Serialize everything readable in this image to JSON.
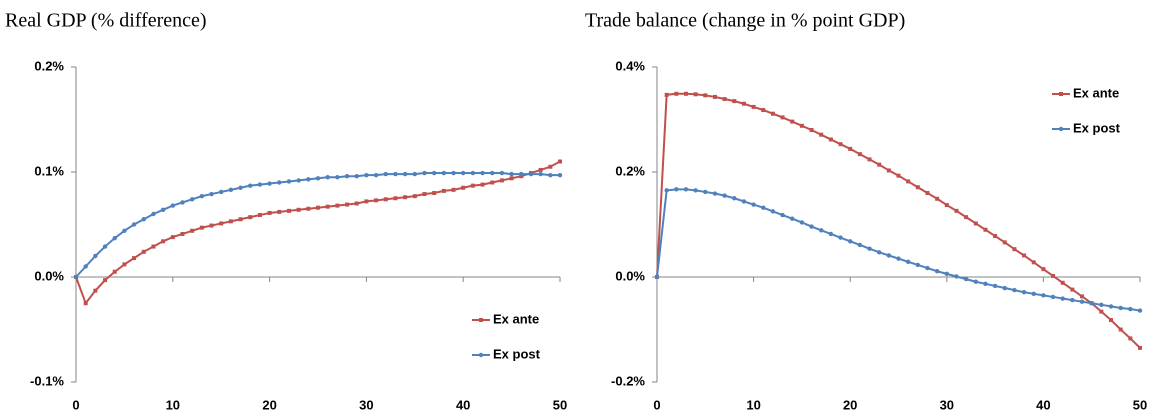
{
  "chart_data": [
    {
      "type": "line",
      "title": "Real GDP (% difference)",
      "x": [
        0,
        1,
        2,
        3,
        4,
        5,
        6,
        7,
        8,
        9,
        10,
        11,
        12,
        13,
        14,
        15,
        16,
        17,
        18,
        19,
        20,
        21,
        22,
        23,
        24,
        25,
        26,
        27,
        28,
        29,
        30,
        31,
        32,
        33,
        34,
        35,
        36,
        37,
        38,
        39,
        40,
        41,
        42,
        43,
        44,
        45,
        46,
        47,
        48,
        49,
        50
      ],
      "xlim": [
        0,
        50
      ],
      "xticks": [
        0,
        10,
        20,
        30,
        40,
        50
      ],
      "ylim": [
        -0.1,
        0.2
      ],
      "yticks": [
        {
          "value": -0.1,
          "label": "-0.1%"
        },
        {
          "value": 0,
          "label": "0.0%"
        },
        {
          "value": 0.1,
          "label": "0.1%"
        },
        {
          "value": 0.2,
          "label": "0.2%"
        }
      ],
      "legend": "bottom-right",
      "series": [
        {
          "name": "Ex ante",
          "color": "#c0504d",
          "values": [
            0,
            -0.025,
            -0.013,
            -0.003,
            0.005,
            0.012,
            0.018,
            0.024,
            0.029,
            0.034,
            0.038,
            0.041,
            0.044,
            0.047,
            0.049,
            0.051,
            0.053,
            0.055,
            0.057,
            0.059,
            0.061,
            0.062,
            0.063,
            0.064,
            0.065,
            0.066,
            0.067,
            0.068,
            0.069,
            0.07,
            0.072,
            0.073,
            0.074,
            0.075,
            0.076,
            0.077,
            0.079,
            0.08,
            0.082,
            0.083,
            0.085,
            0.087,
            0.088,
            0.09,
            0.092,
            0.094,
            0.096,
            0.099,
            0.102,
            0.105,
            0.11
          ]
        },
        {
          "name": "Ex post",
          "color": "#4f81bd",
          "values": [
            0,
            0.01,
            0.02,
            0.029,
            0.037,
            0.044,
            0.05,
            0.055,
            0.06,
            0.064,
            0.068,
            0.071,
            0.074,
            0.077,
            0.079,
            0.081,
            0.083,
            0.085,
            0.087,
            0.088,
            0.089,
            0.09,
            0.091,
            0.092,
            0.093,
            0.094,
            0.095,
            0.095,
            0.096,
            0.096,
            0.097,
            0.097,
            0.098,
            0.098,
            0.098,
            0.098,
            0.099,
            0.099,
            0.099,
            0.099,
            0.099,
            0.099,
            0.099,
            0.099,
            0.099,
            0.098,
            0.098,
            0.098,
            0.098,
            0.097,
            0.097
          ]
        }
      ]
    },
    {
      "type": "line",
      "title": "Trade balance (change in % point GDP)",
      "x": [
        0,
        1,
        2,
        3,
        4,
        5,
        6,
        7,
        8,
        9,
        10,
        11,
        12,
        13,
        14,
        15,
        16,
        17,
        18,
        19,
        20,
        21,
        22,
        23,
        24,
        25,
        26,
        27,
        28,
        29,
        30,
        31,
        32,
        33,
        34,
        35,
        36,
        37,
        38,
        39,
        40,
        41,
        42,
        43,
        44,
        45,
        46,
        47,
        48,
        49,
        50
      ],
      "xlim": [
        0,
        50
      ],
      "xticks": [
        0,
        10,
        20,
        30,
        40,
        50
      ],
      "ylim": [
        -0.2,
        0.4
      ],
      "yticks": [
        {
          "value": -0.2,
          "label": "-0.2%"
        },
        {
          "value": 0,
          "label": "0.0%"
        },
        {
          "value": 0.2,
          "label": "0.2%"
        },
        {
          "value": 0.4,
          "label": "0.4%"
        }
      ],
      "legend": "top-right",
      "series": [
        {
          "name": "Ex ante",
          "color": "#c0504d",
          "values": [
            0,
            0.347,
            0.349,
            0.349,
            0.348,
            0.346,
            0.343,
            0.339,
            0.335,
            0.33,
            0.324,
            0.318,
            0.311,
            0.304,
            0.296,
            0.288,
            0.28,
            0.271,
            0.262,
            0.253,
            0.244,
            0.234,
            0.224,
            0.214,
            0.203,
            0.193,
            0.182,
            0.171,
            0.16,
            0.149,
            0.137,
            0.126,
            0.114,
            0.102,
            0.09,
            0.078,
            0.066,
            0.053,
            0.041,
            0.028,
            0.015,
            0.002,
            -0.011,
            -0.024,
            -0.037,
            -0.05,
            -0.066,
            -0.082,
            -0.1,
            -0.117,
            -0.135
          ]
        },
        {
          "name": "Ex post",
          "color": "#4f81bd",
          "values": [
            0,
            0.165,
            0.167,
            0.167,
            0.165,
            0.162,
            0.159,
            0.155,
            0.15,
            0.144,
            0.138,
            0.132,
            0.125,
            0.118,
            0.111,
            0.104,
            0.096,
            0.089,
            0.082,
            0.075,
            0.068,
            0.061,
            0.054,
            0.047,
            0.041,
            0.035,
            0.029,
            0.023,
            0.017,
            0.011,
            0.006,
            0.001,
            -0.004,
            -0.009,
            -0.013,
            -0.017,
            -0.021,
            -0.025,
            -0.029,
            -0.032,
            -0.035,
            -0.038,
            -0.041,
            -0.044,
            -0.047,
            -0.05,
            -0.053,
            -0.056,
            -0.059,
            -0.061,
            -0.064
          ]
        }
      ]
    }
  ]
}
